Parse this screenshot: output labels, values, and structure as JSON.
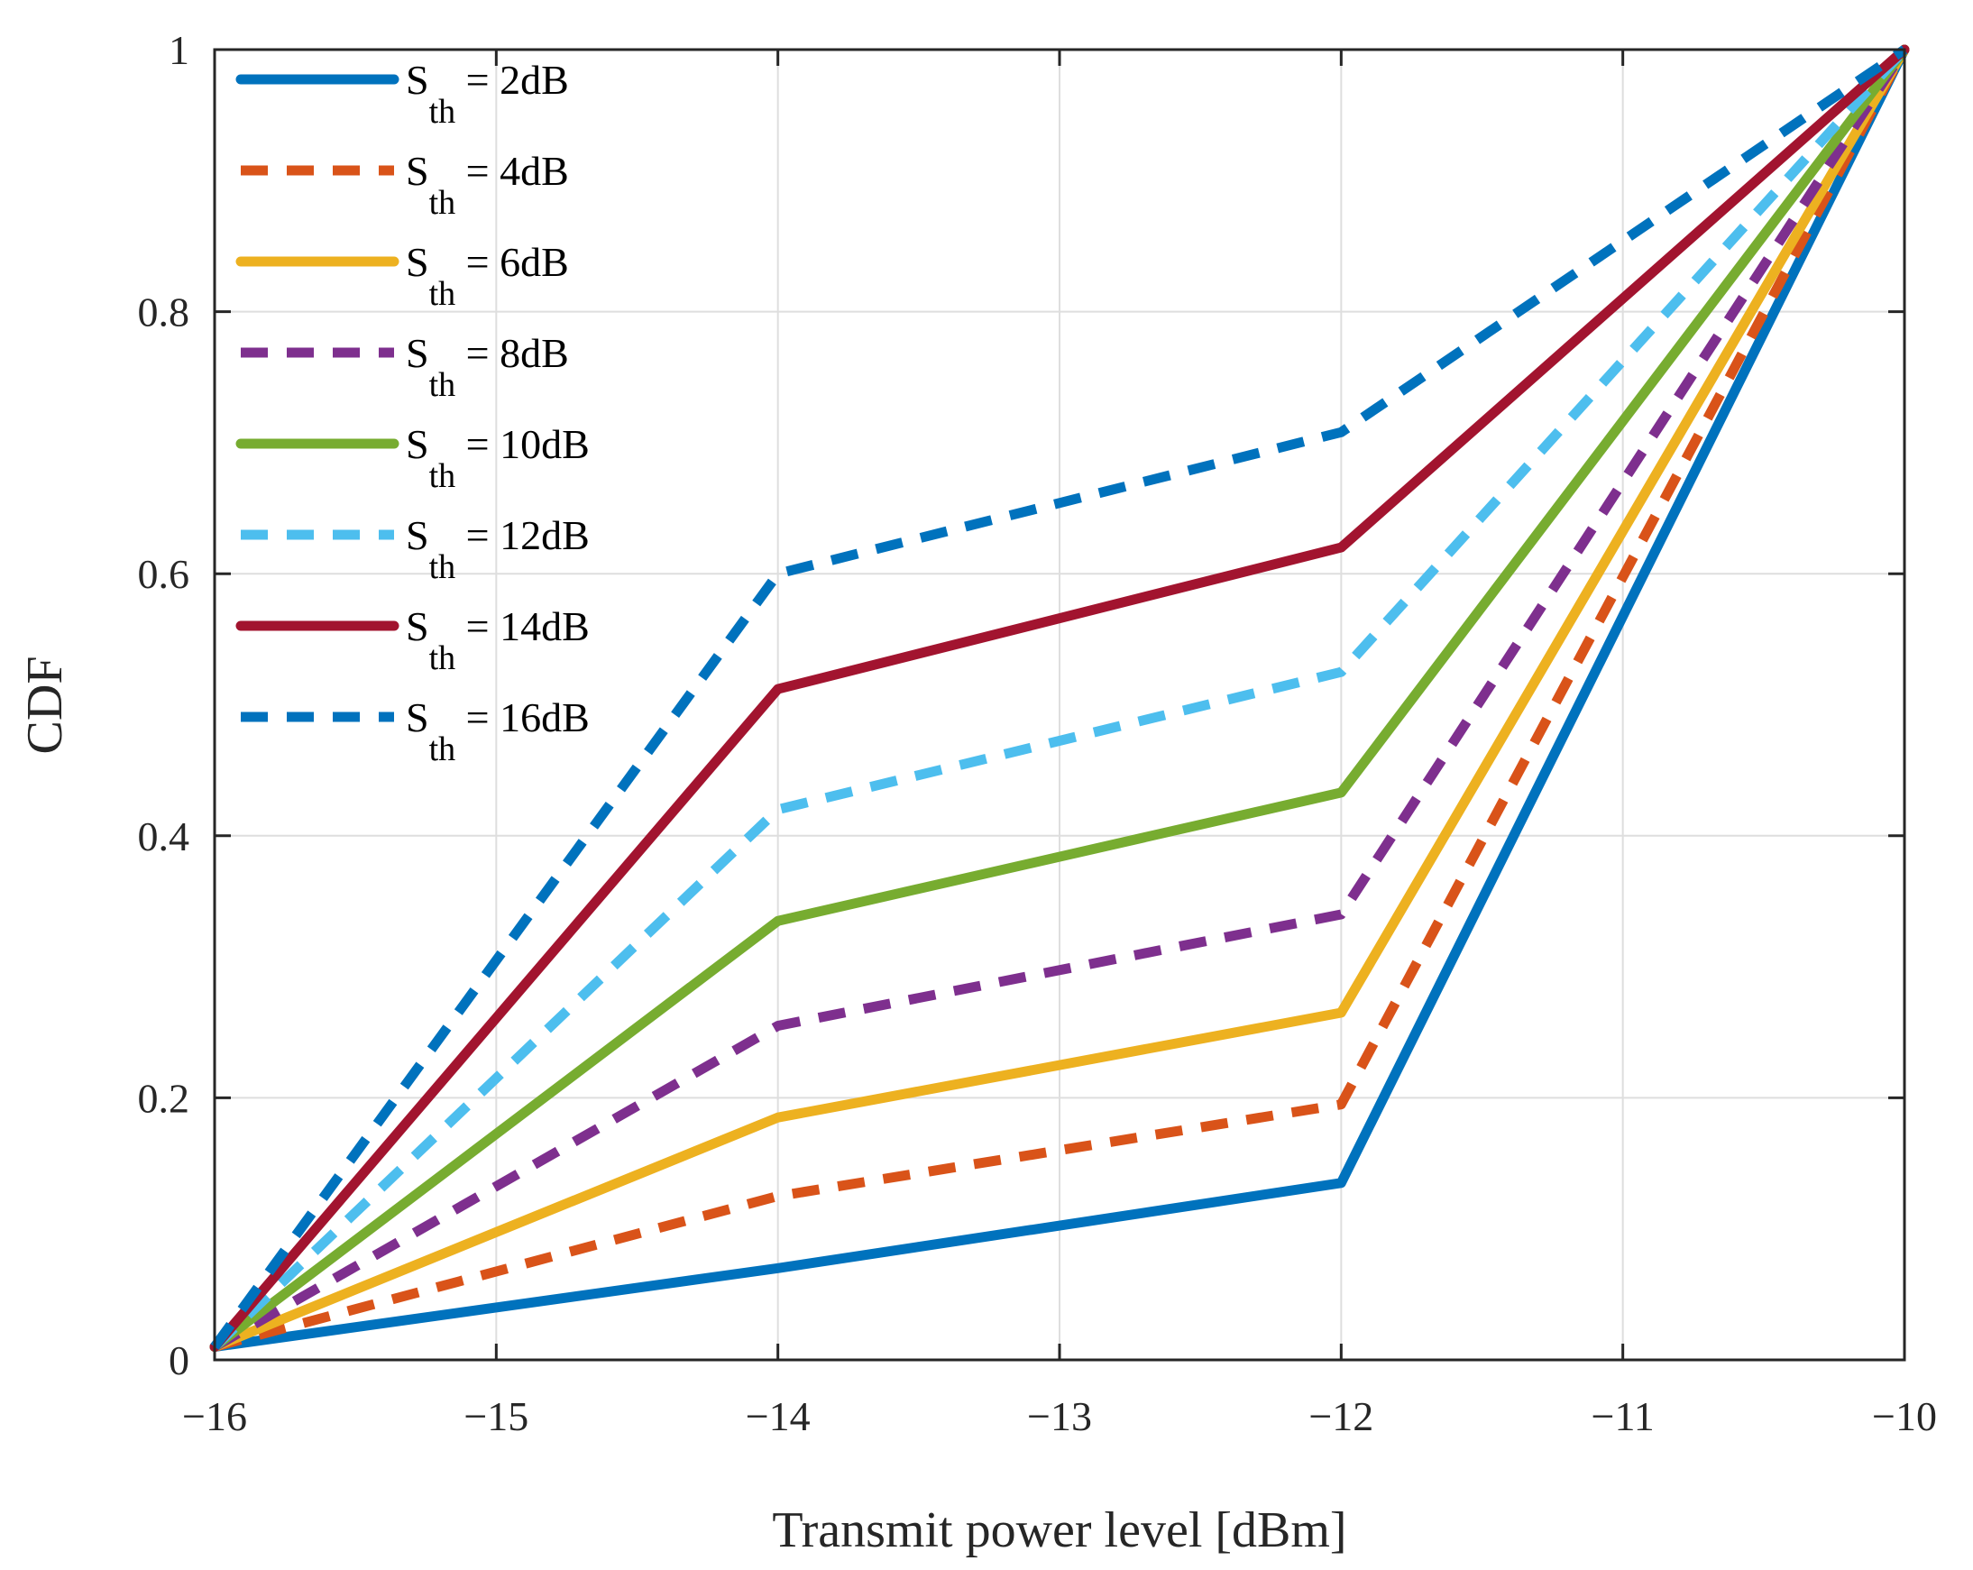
{
  "chart_data": {
    "type": "line",
    "title": "",
    "xlabel": "Transmit power level [dBm]",
    "ylabel": "CDF",
    "xlim": [
      -16,
      -10
    ],
    "ylim": [
      0,
      1
    ],
    "grid": true,
    "legend_position": "top-left",
    "x": [
      -16,
      -14,
      -12,
      -10
    ],
    "xticks": [
      -16,
      -15,
      -14,
      -13,
      -12,
      -11,
      -10
    ],
    "xtick_labels": [
      "−16",
      "−15",
      "−14",
      "−13",
      "−12",
      "−11",
      "−10"
    ],
    "yticks": [
      0,
      0.2,
      0.4,
      0.6,
      0.8,
      1
    ],
    "ytick_labels": [
      "0",
      "0.2",
      "0.4",
      "0.6",
      "0.8",
      "1"
    ],
    "series": [
      {
        "name": "S_th = 2dB",
        "legend_main": "S",
        "legend_sub": "th",
        "legend_rest": " = 2dB",
        "color": "#0072BD",
        "dashed": false,
        "values": [
          0.01,
          0.07,
          0.135,
          1.0
        ]
      },
      {
        "name": "S_th = 4dB",
        "legend_main": "S",
        "legend_sub": "th",
        "legend_rest": " = 4dB",
        "color": "#D95319",
        "dashed": true,
        "values": [
          0.01,
          0.125,
          0.195,
          1.0
        ]
      },
      {
        "name": "S_th = 6dB",
        "legend_main": "S",
        "legend_sub": "th",
        "legend_rest": " = 6dB",
        "color": "#EDB120",
        "dashed": false,
        "values": [
          0.01,
          0.185,
          0.265,
          1.0
        ]
      },
      {
        "name": "S_th = 8dB",
        "legend_main": "S",
        "legend_sub": "th",
        "legend_rest": " = 8dB",
        "color": "#7E2F8E",
        "dashed": true,
        "values": [
          0.01,
          0.255,
          0.34,
          1.0
        ]
      },
      {
        "name": "S_th = 10dB",
        "legend_main": "S",
        "legend_sub": "th",
        "legend_rest": " = 10dB",
        "color": "#77AC30",
        "dashed": false,
        "values": [
          0.01,
          0.335,
          0.433,
          1.0
        ]
      },
      {
        "name": "S_th = 12dB",
        "legend_main": "S",
        "legend_sub": "th",
        "legend_rest": " = 12dB",
        "color": "#4DBEEE",
        "dashed": true,
        "values": [
          0.01,
          0.42,
          0.525,
          1.0
        ]
      },
      {
        "name": "S_th = 14dB",
        "legend_main": "S",
        "legend_sub": "th",
        "legend_rest": " = 14dB",
        "color": "#A2142F",
        "dashed": false,
        "values": [
          0.01,
          0.512,
          0.62,
          1.0
        ]
      },
      {
        "name": "S_th = 16dB",
        "legend_main": "S",
        "legend_sub": "th",
        "legend_rest": " = 16dB",
        "color": "#0072BD",
        "dashed": true,
        "values": [
          0.01,
          0.6,
          0.708,
          1.0
        ]
      }
    ]
  }
}
